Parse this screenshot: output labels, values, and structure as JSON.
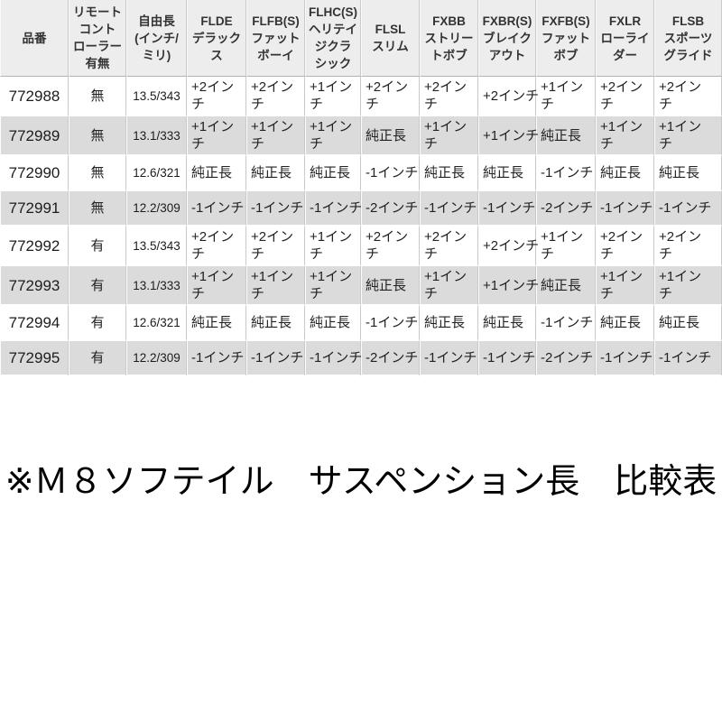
{
  "table": {
    "columns": [
      {
        "key": "part",
        "label": "品番"
      },
      {
        "key": "remote",
        "label": "リモート\nコント\nローラー\n有無"
      },
      {
        "key": "free_length",
        "label": "自由長\n(インチ/\nミリ)"
      },
      {
        "key": "flde",
        "label": "FLDE\nデラック\nス"
      },
      {
        "key": "flfb",
        "label": "FLFB(S)\nファット\nボーイ"
      },
      {
        "key": "flhc",
        "label": "FLHC(S)\nヘリテイ\nジクラ\nシック"
      },
      {
        "key": "flsl",
        "label": "FLSL\nスリム"
      },
      {
        "key": "fxbb",
        "label": "FXBB\nストリー\nトボブ"
      },
      {
        "key": "fxbr",
        "label": "FXBR(S)\nブレイク\nアウト"
      },
      {
        "key": "fxfb",
        "label": "FXFB(S)\nファット\nボブ"
      },
      {
        "key": "fxlr",
        "label": "FXLR\nローライ\nダー"
      },
      {
        "key": "flsb",
        "label": "FLSB\nスポーツ\nグライド"
      }
    ],
    "rows": [
      [
        "772988",
        "無",
        "13.5/343",
        "+2イン\nチ",
        "+2イン\nチ",
        "+1イン\nチ",
        "+2イン\nチ",
        "+2イン\nチ",
        "+2インチ",
        "+1イン\nチ",
        "+2イン\nチ",
        "+2イン\nチ"
      ],
      [
        "772989",
        "無",
        "13.1/333",
        "+1イン\nチ",
        "+1イン\nチ",
        "+1イン\nチ",
        "純正長",
        "+1イン\nチ",
        "+1インチ",
        "純正長",
        "+1イン\nチ",
        "+1イン\nチ"
      ],
      [
        "772990",
        "無",
        "12.6/321",
        "純正長",
        "純正長",
        "純正長",
        "-1インチ",
        "純正長",
        "純正長",
        "-1インチ",
        "純正長",
        "純正長"
      ],
      [
        "772991",
        "無",
        "12.2/309",
        "-1インチ",
        "-1インチ",
        "-1インチ",
        "-2インチ",
        "-1インチ",
        "-1インチ",
        "-2インチ",
        "-1インチ",
        "-1インチ"
      ],
      [
        "772992",
        "有",
        "13.5/343",
        "+2イン\nチ",
        "+2イン\nチ",
        "+1イン\nチ",
        "+2イン\nチ",
        "+2イン\nチ",
        "+2インチ",
        "+1イン\nチ",
        "+2イン\nチ",
        "+2イン\nチ"
      ],
      [
        "772993",
        "有",
        "13.1/333",
        "+1イン\nチ",
        "+1イン\nチ",
        "+1イン\nチ",
        "純正長",
        "+1イン\nチ",
        "+1インチ",
        "純正長",
        "+1イン\nチ",
        "+1イン\nチ"
      ],
      [
        "772994",
        "有",
        "12.6/321",
        "純正長",
        "純正長",
        "純正長",
        "-1インチ",
        "純正長",
        "純正長",
        "-1インチ",
        "純正長",
        "純正長"
      ],
      [
        "772995",
        "有",
        "12.2/309",
        "-1インチ",
        "-1インチ",
        "-1インチ",
        "-2インチ",
        "-1インチ",
        "-1インチ",
        "-2インチ",
        "-1インチ",
        "-1インチ"
      ]
    ]
  },
  "caption": "※Ｍ８ソフテイル　サスペンション長　比較表",
  "colors": {
    "header_bg": "#ededed",
    "row_alt_bg": "#dbdbdb",
    "row_bg": "#ffffff",
    "border": "#c9c9c9",
    "text": "#222222"
  }
}
